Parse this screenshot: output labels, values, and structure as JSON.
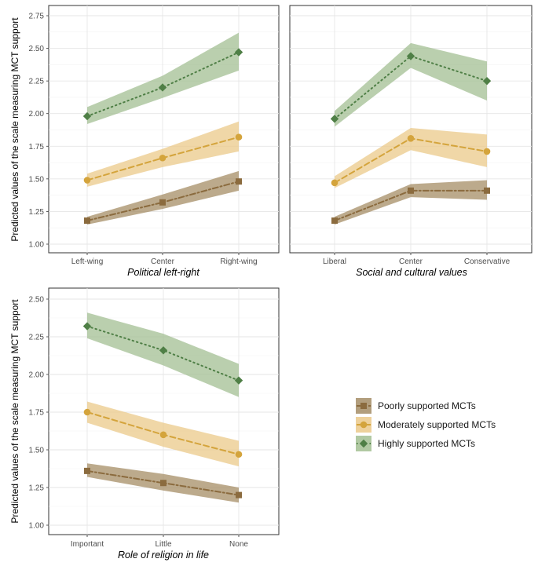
{
  "chart_data": [
    {
      "type": "line",
      "panel": "Political left-right",
      "xlabel": "Political left-right",
      "ylabel": "Predicted values of the scale measuring MCT support",
      "categories": [
        "Left-wing",
        "Center",
        "Right-wing"
      ],
      "ylim": [
        0.95,
        2.8
      ],
      "yticks": [
        "1.00",
        "1.25",
        "1.50",
        "1.75",
        "2.00",
        "2.25",
        "2.50",
        "2.75"
      ],
      "series": [
        {
          "name": "Poorly supported MCTs",
          "values": [
            1.18,
            1.32,
            1.48
          ],
          "lower": [
            1.15,
            1.27,
            1.41
          ],
          "upper": [
            1.21,
            1.38,
            1.56
          ]
        },
        {
          "name": "Moderately supported MCTs",
          "values": [
            1.49,
            1.66,
            1.82
          ],
          "lower": [
            1.44,
            1.59,
            1.71
          ],
          "upper": [
            1.54,
            1.73,
            1.94
          ]
        },
        {
          "name": "Highly supported MCTs",
          "values": [
            1.98,
            2.2,
            2.47
          ],
          "lower": [
            1.92,
            2.12,
            2.33
          ],
          "upper": [
            2.05,
            2.29,
            2.62
          ]
        }
      ]
    },
    {
      "type": "line",
      "panel": "Social and cultural values",
      "xlabel": "Social and cultural values",
      "ylabel": "",
      "categories": [
        "Liberal",
        "Center",
        "Conservative"
      ],
      "ylim": [
        0.95,
        2.8
      ],
      "yticks": [],
      "series": [
        {
          "name": "Poorly supported MCTs",
          "values": [
            1.18,
            1.41,
            1.41
          ],
          "lower": [
            1.15,
            1.36,
            1.34
          ],
          "upper": [
            1.21,
            1.46,
            1.49
          ]
        },
        {
          "name": "Moderately supported MCTs",
          "values": [
            1.47,
            1.81,
            1.71
          ],
          "lower": [
            1.43,
            1.72,
            1.59
          ],
          "upper": [
            1.52,
            1.89,
            1.84
          ]
        },
        {
          "name": "Highly supported MCTs",
          "values": [
            1.96,
            2.44,
            2.25
          ],
          "lower": [
            1.9,
            2.35,
            2.1
          ],
          "upper": [
            2.02,
            2.54,
            2.4
          ]
        }
      ]
    },
    {
      "type": "line",
      "panel": "Role of religion in life",
      "xlabel": "Role of religion in life",
      "ylabel": "Predicted values of the scale measuring MCT support",
      "categories": [
        "Important",
        "Little",
        "None"
      ],
      "ylim": [
        0.95,
        2.6
      ],
      "yticks": [
        "1.00",
        "1.25",
        "1.50",
        "1.75",
        "2.00",
        "2.25",
        "2.50"
      ],
      "series": [
        {
          "name": "Poorly supported MCTs",
          "values": [
            1.36,
            1.28,
            1.2
          ],
          "lower": [
            1.32,
            1.23,
            1.15
          ],
          "upper": [
            1.41,
            1.34,
            1.25
          ]
        },
        {
          "name": "Moderately supported MCTs",
          "values": [
            1.75,
            1.6,
            1.47
          ],
          "lower": [
            1.68,
            1.52,
            1.39
          ],
          "upper": [
            1.82,
            1.68,
            1.56
          ]
        },
        {
          "name": "Highly supported MCTs",
          "values": [
            2.32,
            2.16,
            1.96
          ],
          "lower": [
            2.24,
            2.06,
            1.85
          ],
          "upper": [
            2.41,
            2.27,
            2.07
          ]
        }
      ]
    }
  ],
  "legend": {
    "items": [
      {
        "label": "Poorly supported MCTs",
        "color": "#8b6b3e",
        "fill": "#a58d66",
        "marker": "square",
        "dash": "dashdot"
      },
      {
        "label": "Moderately supported MCTs",
        "color": "#d4a43c",
        "fill": "#ebc98a",
        "marker": "circle",
        "dash": "dashed"
      },
      {
        "label": "Highly supported MCTs",
        "color": "#4f7f46",
        "fill": "#a3bf93",
        "marker": "diamond",
        "dash": "dotted"
      }
    ]
  }
}
